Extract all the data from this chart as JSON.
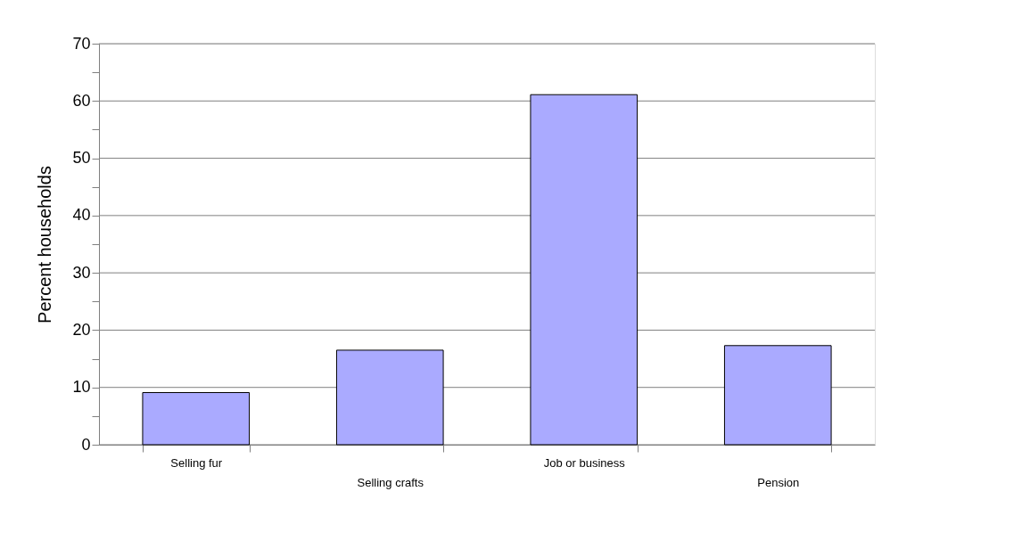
{
  "chart_data": {
    "type": "bar",
    "ylabel": "Percent households",
    "categories": [
      "Selling fur",
      "Selling crafts",
      "Job or business",
      "Pension"
    ],
    "values": [
      9.1,
      16.5,
      61.1,
      17.3
    ],
    "color": "#aaaaff",
    "ylim": [
      0,
      70
    ],
    "yticks": [
      0,
      {
        "value": 5,
        "label": null
      },
      10,
      {
        "value": 15,
        "label": null
      },
      20,
      {
        "value": 25,
        "label": null
      },
      30,
      {
        "value": 35,
        "label": null
      },
      40,
      {
        "value": 45,
        "label": null
      },
      50,
      {
        "value": 55,
        "label": null
      },
      60,
      {
        "value": 65,
        "label": null
      },
      70
    ],
    "grid": "y"
  }
}
